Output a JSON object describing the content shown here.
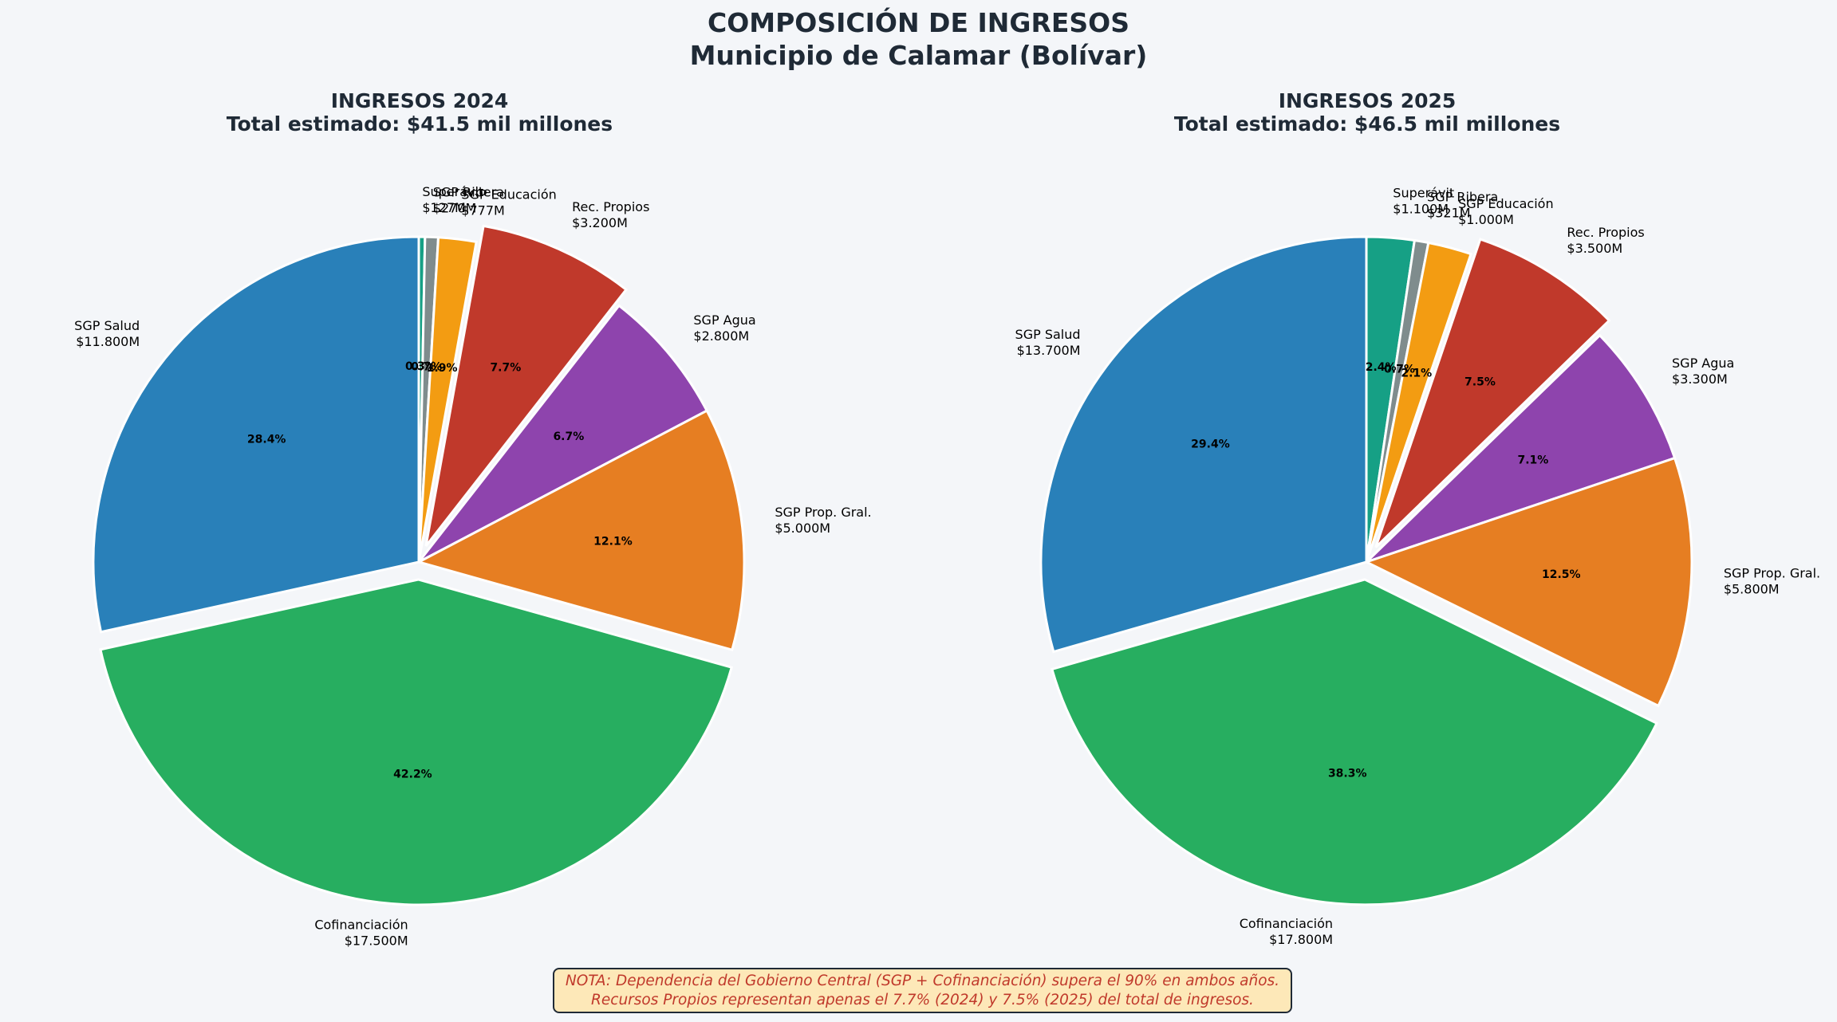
{
  "figure": {
    "title_line1": "COMPOSICIÓN DE INGRESOS",
    "title_line2": "Municipio de Calamar (Bolívar)"
  },
  "chart_data": [
    {
      "type": "pie",
      "title": "INGRESOS 2024",
      "subtitle": "Total estimado: $41.5 mil millones",
      "start_angle": "top",
      "direction": "clockwise",
      "slices": [
        {
          "label": "Superávit",
          "value_label": "$127M",
          "value": 127,
          "pct_label": "0.3%",
          "color": "#16a085"
        },
        {
          "label": "SGP Ribera",
          "value_label": "$270M",
          "value": 270,
          "pct_label": "0.7%",
          "color": "#7f8c8d"
        },
        {
          "label": "SGP Educación",
          "value_label": "$777M",
          "value": 777,
          "pct_label": "1.9%",
          "color": "#f39c12"
        },
        {
          "label": "Rec. Propios",
          "value_label": "$3.200M",
          "value": 3200,
          "pct_label": "7.7%",
          "color": "#c0392b",
          "exploded": true
        },
        {
          "label": "SGP Agua",
          "value_label": "$2.800M",
          "value": 2800,
          "pct_label": "6.7%",
          "color": "#8e44ad"
        },
        {
          "label": "SGP Prop. Gral.",
          "value_label": "$5.000M",
          "value": 5000,
          "pct_label": "12.1%",
          "color": "#e67e22"
        },
        {
          "label": "Cofinanciación",
          "value_label": "$17.500M",
          "value": 17500,
          "pct_label": "42.2%",
          "color": "#27ae60",
          "exploded": true
        },
        {
          "label": "SGP Salud",
          "value_label": "$11.800M",
          "value": 11800,
          "pct_label": "28.4%",
          "color": "#2980b9"
        }
      ]
    },
    {
      "type": "pie",
      "title": "INGRESOS 2025",
      "subtitle": "Total estimado: $46.5 mil millones",
      "start_angle": "top",
      "direction": "clockwise",
      "slices": [
        {
          "label": "Superávit",
          "value_label": "$1.100M",
          "value": 1100,
          "pct_label": "2.4%",
          "color": "#16a085"
        },
        {
          "label": "SGP Ribera",
          "value_label": "$321M",
          "value": 321,
          "pct_label": "0.7%",
          "color": "#7f8c8d"
        },
        {
          "label": "SGP Educación",
          "value_label": "$1.000M",
          "value": 1000,
          "pct_label": "2.1%",
          "color": "#f39c12"
        },
        {
          "label": "Rec. Propios",
          "value_label": "$3.500M",
          "value": 3500,
          "pct_label": "7.5%",
          "color": "#c0392b",
          "exploded": true
        },
        {
          "label": "SGP Agua",
          "value_label": "$3.300M",
          "value": 3300,
          "pct_label": "7.1%",
          "color": "#8e44ad"
        },
        {
          "label": "SGP Prop. Gral.",
          "value_label": "$5.800M",
          "value": 5800,
          "pct_label": "12.5%",
          "color": "#e67e22"
        },
        {
          "label": "Cofinanciación",
          "value_label": "$17.800M",
          "value": 17800,
          "pct_label": "38.3%",
          "color": "#27ae60",
          "exploded": true
        },
        {
          "label": "SGP Salud",
          "value_label": "$13.700M",
          "value": 13700,
          "pct_label": "29.4%",
          "color": "#2980b9"
        }
      ]
    }
  ],
  "note": {
    "line1": "NOTA: Dependencia del Gobierno Central (SGP + Cofinanciación) supera el 90% en ambos años.",
    "line2": "Recursos Propios representan apenas el 7.7% (2024) y 7.5% (2025) del total de ingresos."
  }
}
